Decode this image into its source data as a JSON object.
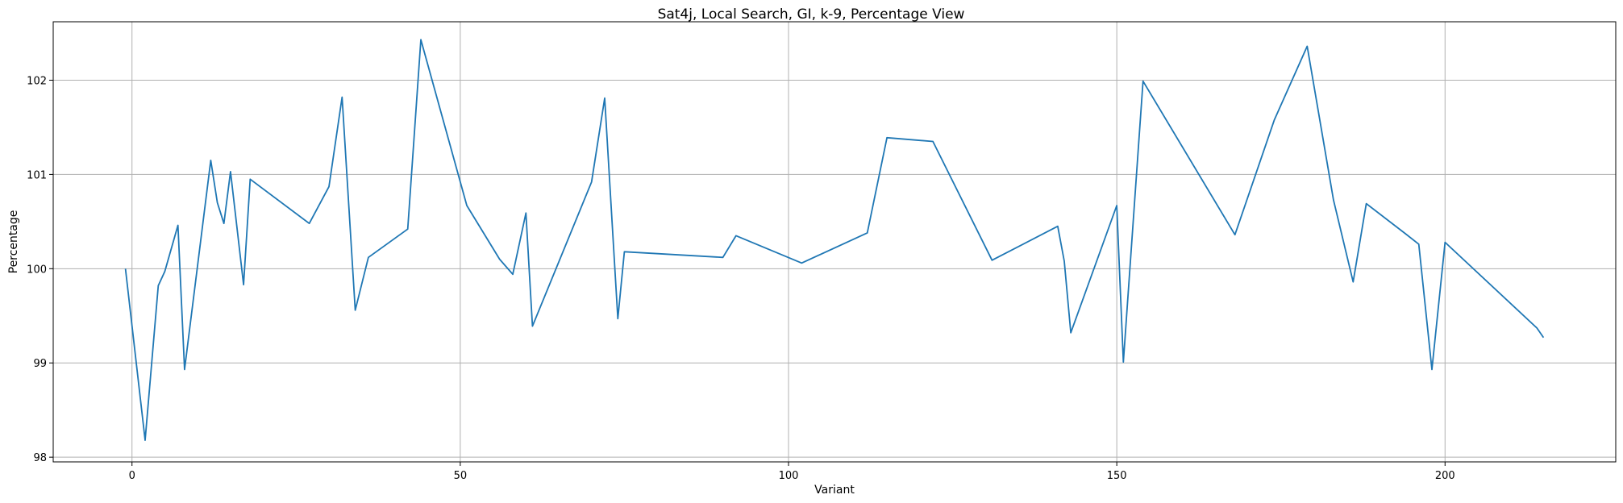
{
  "chart_data": {
    "type": "line",
    "title": "Sat4j, Local Search, GI, k-9, Percentage View",
    "xlabel": "Variant",
    "ylabel": "Percentage",
    "xlim": [
      -12,
      226
    ],
    "ylim": [
      97.95,
      102.62
    ],
    "xticks": [
      0,
      50,
      100,
      150,
      200
    ],
    "yticks": [
      98,
      99,
      100,
      101,
      102
    ],
    "grid": true,
    "line_color": "#1f77b4",
    "series": [
      {
        "x": [
          -1,
          2,
          4,
          5,
          7,
          8,
          12,
          13,
          14,
          15,
          17,
          18,
          27,
          30,
          32,
          34,
          36,
          42,
          44,
          51,
          56,
          58,
          60,
          61,
          70,
          72,
          74,
          75,
          90,
          92,
          102,
          112,
          115,
          122,
          131,
          141,
          142,
          143,
          150,
          151,
          154,
          168,
          174,
          179,
          183,
          186,
          188,
          194,
          196,
          198,
          200,
          214,
          215
        ],
        "y": [
          100.0,
          98.18,
          99.82,
          99.97,
          100.46,
          98.93,
          101.15,
          100.7,
          100.48,
          101.03,
          99.83,
          100.95,
          100.48,
          100.87,
          101.82,
          99.56,
          100.12,
          100.42,
          102.43,
          100.67,
          100.1,
          99.94,
          100.59,
          99.39,
          100.92,
          101.81,
          99.47,
          100.18,
          100.12,
          100.35,
          100.06,
          100.38,
          101.39,
          101.35,
          100.09,
          100.45,
          100.08,
          99.32,
          100.67,
          99.01,
          101.99,
          100.36,
          101.58,
          102.36,
          100.73,
          99.86,
          100.69,
          100.37,
          100.26,
          98.93,
          100.28,
          99.37,
          99.27
        ]
      }
    ]
  }
}
